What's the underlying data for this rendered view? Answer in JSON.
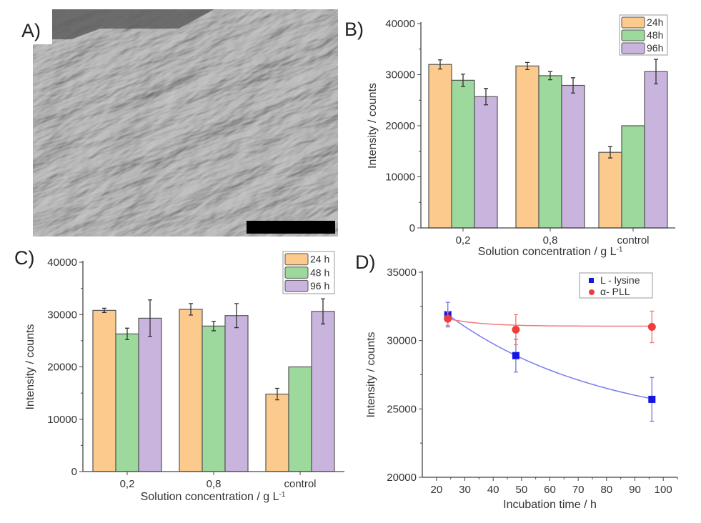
{
  "panels": {
    "a": {
      "label": "A)",
      "image": "SEM micrograph of cells spread on a surface, with a black scale bar (no printed length)"
    },
    "b": {
      "label": "B)"
    },
    "c": {
      "label": "C)"
    },
    "d": {
      "label": "D)"
    }
  },
  "colors": {
    "h24": "#fdca8e",
    "h48": "#9dd89c",
    "h96": "#c9b4de",
    "edge": "#555555",
    "lysine": "#1414e6",
    "pll": "#f03c3c",
    "lysine_fit": "#7b7bf0",
    "pll_fit": "#f27a7a"
  },
  "chart_data": [
    {
      "id": "b",
      "type": "bar",
      "categories": [
        "0,2",
        "0,8",
        "control"
      ],
      "series": [
        {
          "name": "24h",
          "values": [
            32000,
            31700,
            14800
          ],
          "errors": [
            900,
            700,
            1100
          ]
        },
        {
          "name": "48h",
          "values": [
            28900,
            29800,
            20000
          ],
          "errors": [
            1200,
            800,
            0
          ]
        },
        {
          "name": "96h",
          "values": [
            25700,
            27900,
            30600
          ],
          "errors": [
            1600,
            1500,
            2400
          ]
        }
      ],
      "xlabel": "Solution concentration / g L",
      "xlabel_sup": "-1",
      "ylabel": "Intensity / counts",
      "ylim": [
        0,
        40000
      ],
      "yticks": [
        "0",
        "10000",
        "20000",
        "30000",
        "40000"
      ],
      "grid": false,
      "legend": "top-right"
    },
    {
      "id": "c",
      "type": "bar",
      "categories": [
        "0,2",
        "0,8",
        "control"
      ],
      "series": [
        {
          "name": "24 h",
          "values": [
            30800,
            31000,
            14800
          ],
          "errors": [
            400,
            1100,
            1100
          ]
        },
        {
          "name": "48 h",
          "values": [
            26300,
            27800,
            20000
          ],
          "errors": [
            1100,
            900,
            0
          ]
        },
        {
          "name": "96 h",
          "values": [
            29300,
            29800,
            30600
          ],
          "errors": [
            3500,
            2300,
            2400
          ]
        }
      ],
      "xlabel": "Solution concentration / g L",
      "xlabel_sup": "-1",
      "ylabel": "Intensity / counts",
      "ylim": [
        0,
        40000
      ],
      "yticks": [
        "0",
        "10000",
        "20000",
        "30000",
        "40000"
      ],
      "grid": false,
      "legend": "top-right"
    },
    {
      "id": "d",
      "type": "scatter",
      "series": [
        {
          "name": "L - lysine",
          "marker": "square",
          "x": [
            24,
            48,
            96
          ],
          "y": [
            31900,
            28900,
            25700
          ],
          "errors": [
            900,
            1200,
            1600
          ],
          "fit": "exponential decay"
        },
        {
          "name": "α- PLL",
          "marker": "circle",
          "x": [
            24,
            48,
            96
          ],
          "y": [
            31600,
            30800,
            31000
          ],
          "errors": [
            500,
            1100,
            1150
          ],
          "fit": "exponential decay"
        }
      ],
      "xlabel": "Incubation time / h",
      "ylabel": "Intensity / counts",
      "xlim": [
        15,
        105
      ],
      "ylim": [
        20000,
        35000
      ],
      "xticks": [
        "20",
        "30",
        "40",
        "50",
        "60",
        "70",
        "80",
        "90",
        "100"
      ],
      "yticks": [
        "20000",
        "25000",
        "30000",
        "35000"
      ],
      "grid": false,
      "legend": "top-right"
    }
  ]
}
